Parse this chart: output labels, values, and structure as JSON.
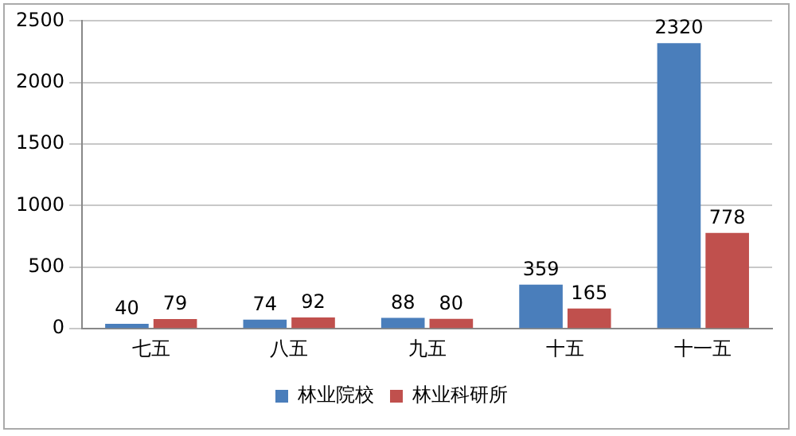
{
  "chart_data": {
    "type": "bar",
    "categories": [
      "七五",
      "八五",
      "九五",
      "十五",
      "十一五"
    ],
    "series": [
      {
        "name": "林业院校",
        "color": "#4a7ebb",
        "values": [
          40,
          74,
          88,
          359,
          2320
        ]
      },
      {
        "name": "林业科研所",
        "color": "#c0504d",
        "values": [
          79,
          92,
          80,
          165,
          778
        ]
      }
    ],
    "ylim": [
      0,
      2500
    ],
    "yticks": [
      0,
      500,
      1000,
      1500,
      2000,
      2500
    ],
    "grid": "y",
    "legend": "bottom",
    "data_labels": true
  }
}
